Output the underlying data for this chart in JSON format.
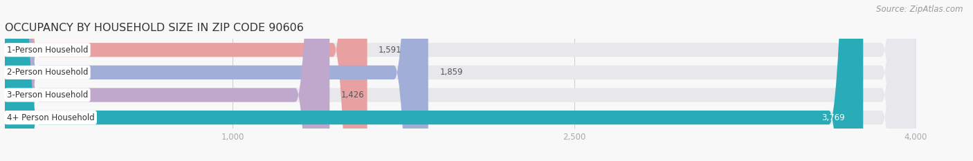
{
  "title": "OCCUPANCY BY HOUSEHOLD SIZE IN ZIP CODE 90606",
  "source": "Source: ZipAtlas.com",
  "categories": [
    "1-Person Household",
    "2-Person Household",
    "3-Person Household",
    "4+ Person Household"
  ],
  "values": [
    1591,
    1859,
    1426,
    3769
  ],
  "bar_colors": [
    "#e8a0a0",
    "#a0aed8",
    "#c0a8cc",
    "#2aacb8"
  ],
  "bar_bg_color": "#e8e8ec",
  "xlim": [
    0,
    4200
  ],
  "xticks": [
    1000,
    2500,
    4000
  ],
  "title_fontsize": 11.5,
  "label_fontsize": 8.5,
  "value_fontsize": 8.5,
  "source_fontsize": 8.5,
  "background_color": "#f8f8f8",
  "bar_height": 0.62,
  "bar_gap": 0.38,
  "label_bg_color": "#ffffff",
  "value_color_inside": "#ffffff",
  "value_color_outside": "#666666",
  "grid_color": "#cccccc",
  "tick_color": "#aaaaaa",
  "title_color": "#333333"
}
